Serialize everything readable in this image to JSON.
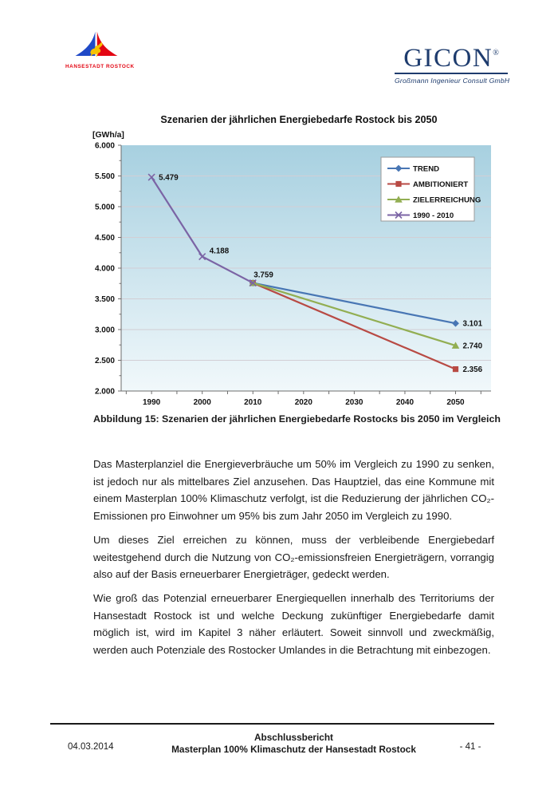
{
  "header": {
    "rostock": {
      "label": "HANSESTADT ROSTOCK",
      "blue": "#1f49c7",
      "red": "#e30613",
      "yellow": "#f5c200"
    },
    "gicon": {
      "wordmark": "GICON",
      "registered": "®",
      "subtitle": "Großmann Ingenieur Consult GmbH",
      "color": "#1e3c6e"
    }
  },
  "chart_data": {
    "type": "line",
    "title": "Szenarien der jährlichen Energiebedarfe Rostock bis 2050",
    "y_unit_label": "[GWh/a]",
    "xlabel": "",
    "ylabel": "[GWh/a]",
    "ylim": [
      2000,
      6000
    ],
    "xlim": [
      1984,
      2057
    ],
    "grid": true,
    "grid_color": "#d2ced4",
    "plot_bg_top": "#a7d0e0",
    "plot_bg_bottom": "#f1f8fb",
    "legend_position": "top-right",
    "yticks": [
      {
        "value": 6000,
        "label": "6.000"
      },
      {
        "value": 5500,
        "label": "5.500"
      },
      {
        "value": 5000,
        "label": "5.000"
      },
      {
        "value": 4500,
        "label": "4.500"
      },
      {
        "value": 4000,
        "label": "4.000"
      },
      {
        "value": 3500,
        "label": "3.500"
      },
      {
        "value": 3000,
        "label": "3.000"
      },
      {
        "value": 2500,
        "label": "2.500"
      },
      {
        "value": 2000,
        "label": "2.000"
      }
    ],
    "xticks": [
      {
        "value": 1990,
        "label": "1990"
      },
      {
        "value": 2000,
        "label": "2000"
      },
      {
        "value": 2010,
        "label": "2010"
      },
      {
        "value": 2020,
        "label": "2020"
      },
      {
        "value": 2030,
        "label": "2030"
      },
      {
        "value": 2040,
        "label": "2040"
      },
      {
        "value": 2050,
        "label": "2050"
      }
    ],
    "series": [
      {
        "name": "TREND",
        "color": "#4876b4",
        "marker": "diamond",
        "points": [
          {
            "x": 2010,
            "y": 3759
          },
          {
            "x": 2050,
            "y": 3101
          }
        ]
      },
      {
        "name": "AMBITIONIERT",
        "color": "#b84a44",
        "marker": "square",
        "points": [
          {
            "x": 2010,
            "y": 3759
          },
          {
            "x": 2050,
            "y": 2356
          }
        ]
      },
      {
        "name": "ZIELERREICHUNG",
        "color": "#92ae52",
        "marker": "triangle",
        "points": [
          {
            "x": 2010,
            "y": 3759
          },
          {
            "x": 2050,
            "y": 2740
          }
        ]
      },
      {
        "name": "1990 - 2010",
        "color": "#7b64a5",
        "marker": "x-cross",
        "points": [
          {
            "x": 1990,
            "y": 5479
          },
          {
            "x": 2000,
            "y": 4188
          },
          {
            "x": 2010,
            "y": 3759
          }
        ]
      }
    ],
    "point_labels": [
      {
        "text": "5.479",
        "x": 1990,
        "y": 5479,
        "placement": "right"
      },
      {
        "text": "4.188",
        "x": 2000,
        "y": 4188,
        "placement": "upper-right"
      },
      {
        "text": "3.759",
        "x": 2010,
        "y": 3759,
        "placement": "above"
      },
      {
        "text": "3.101",
        "x": 2050,
        "y": 3101,
        "placement": "right"
      },
      {
        "text": "2.740",
        "x": 2050,
        "y": 2740,
        "placement": "right"
      },
      {
        "text": "2.356",
        "x": 2050,
        "y": 2356,
        "placement": "right"
      }
    ]
  },
  "figure_caption": "Abbildung 15: Szenarien der jährlichen Energiebedarfe Rostocks bis 2050 im Vergleich",
  "body": {
    "paragraphs": [
      "Das Masterplanziel die Energieverbräuche um 50% im Vergleich zu 1990 zu senken, ist jedoch nur als mittelbares Ziel anzusehen. Das Hauptziel, das eine Kommune mit einem Masterplan 100% Klimaschutz verfolgt, ist die Reduzierung der jährlichen CO₂-Emissionen pro Einwohner um 95% bis zum Jahr 2050 im Vergleich zu 1990.",
      "Um dieses Ziel erreichen zu können, muss der verbleibende Energiebedarf weitestgehend durch die Nutzung von CO₂-emissionsfreien Energieträgern, vorrangig also auf der Basis erneuerbarer Energieträger, gedeckt werden.",
      "Wie groß das Potenzial erneuerbarer Energiequellen innerhalb des Territoriums der Hansestadt Rostock ist und welche Deckung zukünftiger Energiebedarfe damit möglich ist, wird im Kapitel 3 näher erläutert. Soweit sinnvoll und zweckmäßig, werden auch Potenziale des Rostocker Umlandes in die Betrachtung mit einbezogen."
    ]
  },
  "footer": {
    "date": "04.03.2014",
    "line1": "Abschlussbericht",
    "line2": "Masterplan 100% Klimaschutz der Hansestadt Rostock",
    "page": "- 41 -"
  }
}
